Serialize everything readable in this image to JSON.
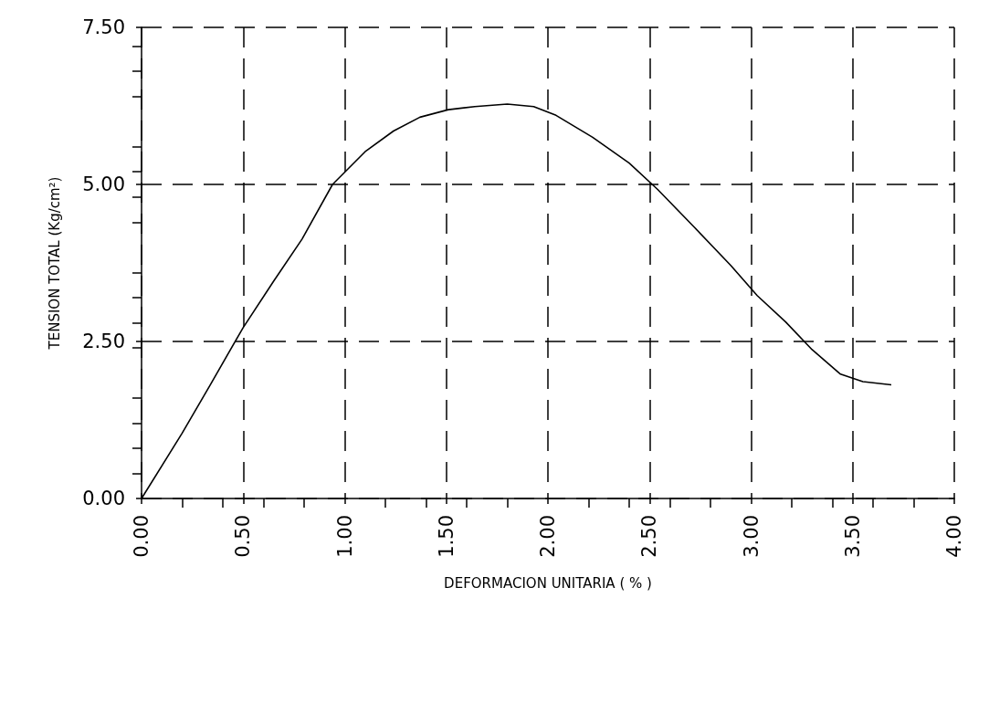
{
  "chart_data": {
    "type": "line",
    "xlabel": "DEFORMACION UNITARIA ( % )",
    "ylabel": "TENSION TOTAL (Kg/cm²)",
    "series": [
      {
        "color": "#000000",
        "x": [
          0,
          0.2,
          0.34,
          0.5,
          0.65,
          0.79,
          0.94,
          1.1,
          1.24,
          1.37,
          1.51,
          1.64,
          1.8,
          1.93,
          2.04,
          2.22,
          2.4,
          2.54,
          2.72,
          2.9,
          3.03,
          3.17,
          3.3,
          3.44,
          3.55,
          3.69
        ],
        "values": [
          0,
          1.04,
          1.82,
          2.72,
          3.46,
          4.13,
          5.0,
          5.52,
          5.85,
          6.07,
          6.19,
          6.24,
          6.28,
          6.24,
          6.1,
          5.75,
          5.34,
          4.92,
          4.32,
          3.71,
          3.23,
          2.81,
          2.37,
          1.98,
          1.86,
          1.81
        ]
      }
    ],
    "xlim": [
      0,
      4
    ],
    "ylim": [
      0,
      7.5
    ],
    "xticks": [
      {
        "value": 0,
        "label": "0.00"
      },
      {
        "value": 0.5,
        "label": "0.50"
      },
      {
        "value": 1,
        "label": "1.00"
      },
      {
        "value": 1.5,
        "label": "1.50"
      },
      {
        "value": 2,
        "label": "2.00"
      },
      {
        "value": 2.5,
        "label": "2.50"
      },
      {
        "value": 3,
        "label": "3.00"
      },
      {
        "value": 3.5,
        "label": "3.50"
      },
      {
        "value": 4,
        "label": "4.00"
      }
    ],
    "yticks": [
      {
        "value": 0,
        "label": "0.00"
      },
      {
        "value": 2.5,
        "label": "2.50"
      },
      {
        "value": 5,
        "label": "5.00"
      },
      {
        "value": 7.5,
        "label": "7.50"
      }
    ],
    "grid": true,
    "marker": "none",
    "line_style": "solid"
  }
}
